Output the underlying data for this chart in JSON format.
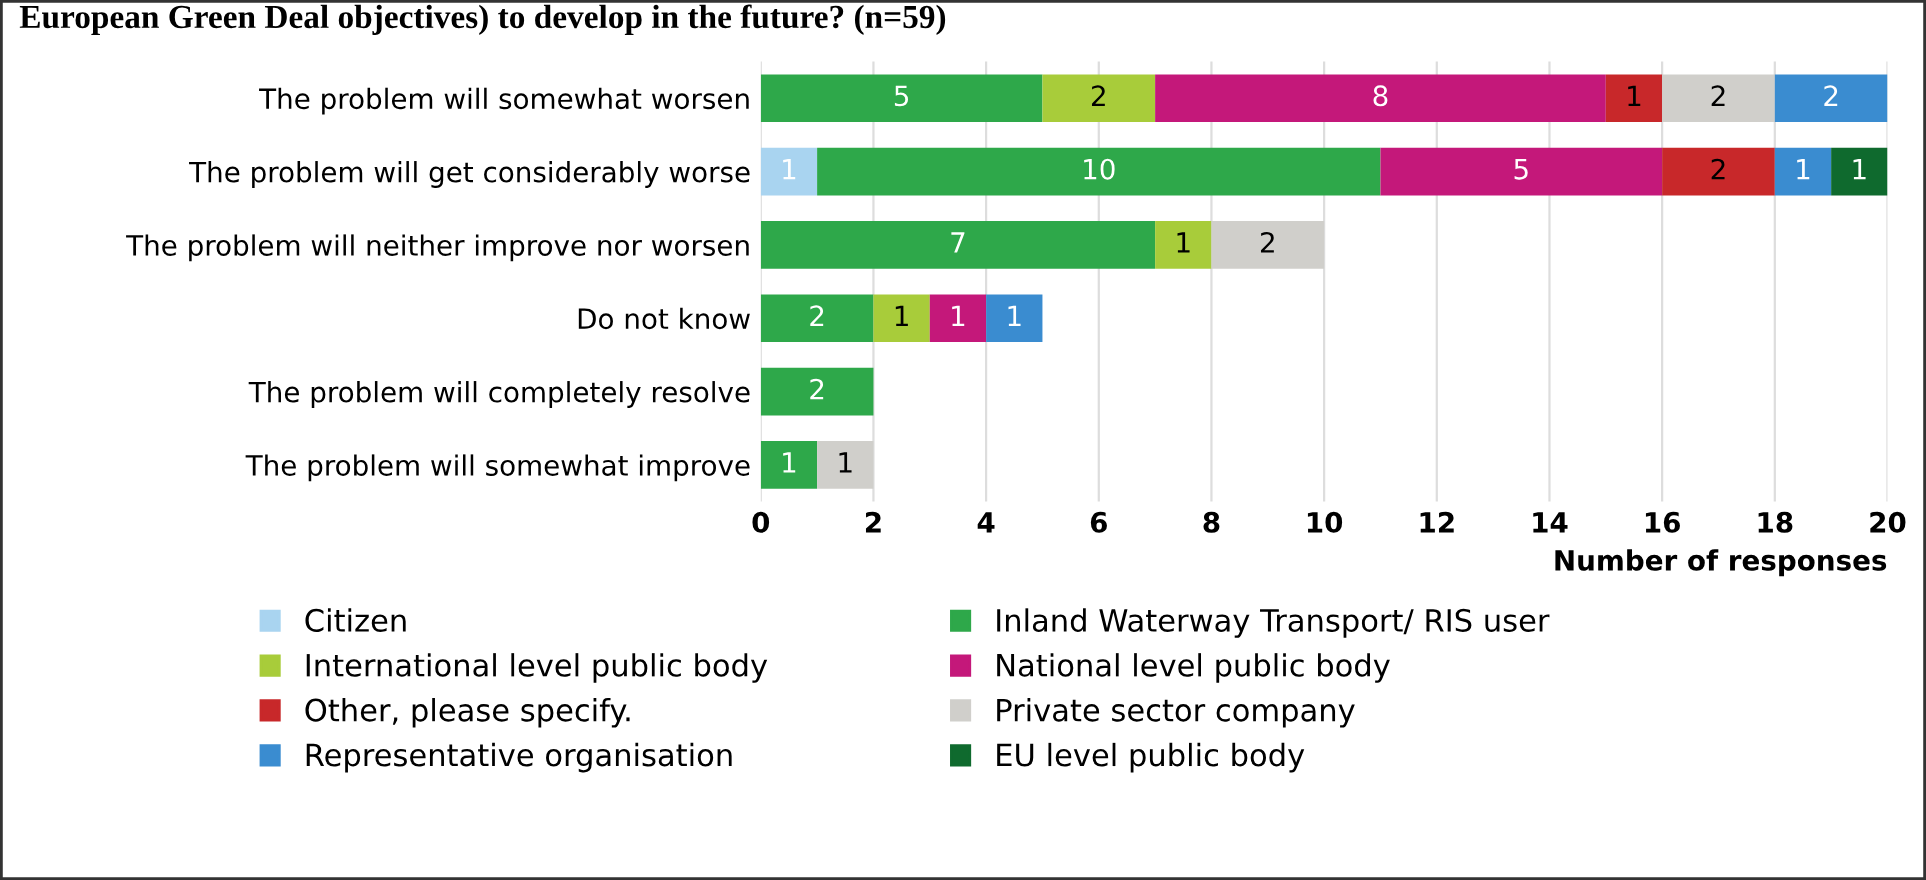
{
  "chart_data": {
    "type": "bar",
    "orientation": "horizontal",
    "stacked": true,
    "data_labels": true,
    "grid": "x",
    "legend": "bottom",
    "title": "European Green Deal objectives) to develop in the future? (n=59)",
    "xlabel": "Number of responses",
    "categories": [
      "The problem will somewhat worsen",
      "The problem will get considerably worse",
      "The problem will neither improve nor worsen",
      "Do not know",
      "The problem will completely resolve",
      "The problem will somewhat improve"
    ],
    "xlim": [
      0,
      20
    ],
    "xticks": [
      0,
      2,
      4,
      6,
      8,
      10,
      12,
      14,
      16,
      18,
      20
    ],
    "series": [
      {
        "name": "Citizen",
        "color": "#a9d4f0",
        "values": [
          null,
          1,
          null,
          null,
          null,
          null
        ]
      },
      {
        "name": "Inland Waterway Transport/ RIS user",
        "color": "#2ea84a",
        "values": [
          5,
          10,
          7,
          2,
          2,
          1
        ]
      },
      {
        "name": "International level public body",
        "color": "#a8cc3a",
        "values": [
          2,
          null,
          1,
          1,
          null,
          null
        ]
      },
      {
        "name": "National level public body",
        "color": "#c4187a",
        "values": [
          8,
          5,
          null,
          1,
          null,
          null
        ]
      },
      {
        "name": "Other, please specify.",
        "color": "#c8282a",
        "values": [
          1,
          2,
          null,
          null,
          null,
          null
        ]
      },
      {
        "name": "Private sector company",
        "color": "#d0cfcb",
        "values": [
          2,
          null,
          2,
          null,
          null,
          1
        ]
      },
      {
        "name": "Representative organisation",
        "color": "#3a8cd0",
        "values": [
          2,
          1,
          null,
          1,
          null,
          null
        ]
      },
      {
        "name": "EU level public body",
        "color": "#0f6a2e",
        "values": [
          null,
          1,
          null,
          null,
          null,
          null
        ]
      }
    ]
  }
}
